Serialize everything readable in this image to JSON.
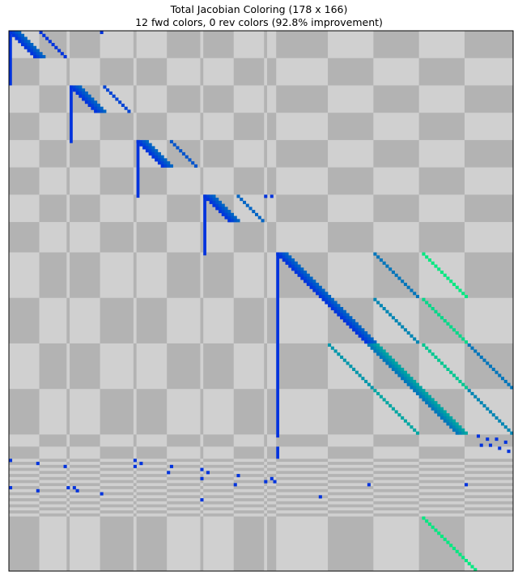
{
  "title_line1": "Total Jacobian Coloring (178 x 166)",
  "title_line2": "12 fwd colors, 0 rev colors (92.8% improvement)",
  "chart_data": {
    "type": "heatmap",
    "title": "Total Jacobian Coloring (178 x 166)\n12 fwd colors, 0 rev colors (92.8% improvement)",
    "n_rows": 178,
    "n_cols": 166,
    "xlim": [
      0,
      166
    ],
    "ylim": [
      178,
      0
    ],
    "grid": false,
    "legend": "none",
    "colors": {
      "block_light": "#d0d0d0",
      "block_dark": "#b3b3b3",
      "fwd_color_1": "#0033dd",
      "fwd_color_last": "#00e880"
    },
    "row_block_bounds": [
      0,
      9,
      18,
      27,
      36,
      45,
      54,
      63,
      73,
      88,
      103,
      118,
      133,
      137,
      141,
      142,
      143,
      144,
      145,
      146,
      147,
      148,
      149,
      150,
      151,
      152,
      153,
      154,
      155,
      156,
      157,
      158,
      159,
      160,
      178
    ],
    "col_block_bounds": [
      0,
      10,
      19,
      20,
      30,
      41,
      42,
      52,
      63,
      64,
      74,
      84,
      85,
      88,
      105,
      120,
      135,
      150,
      166
    ],
    "diagonal_runs": [
      {
        "row0": 0,
        "col0": 0,
        "len": 9,
        "width": 4,
        "colors": [
          1,
          2,
          3,
          4
        ]
      },
      {
        "row0": 18,
        "col0": 20,
        "len": 9,
        "width": 4,
        "colors": [
          1,
          2,
          3,
          4
        ]
      },
      {
        "row0": 36,
        "col0": 42,
        "len": 9,
        "width": 4,
        "colors": [
          1,
          2,
          3,
          4
        ]
      },
      {
        "row0": 54,
        "col0": 64,
        "len": 9,
        "width": 4,
        "colors": [
          1,
          2,
          3,
          4
        ]
      },
      {
        "row0": 73,
        "col0": 88,
        "len": 15,
        "width": 4,
        "colors": [
          1,
          2,
          3,
          4
        ]
      },
      {
        "row0": 88,
        "col0": 103,
        "len": 15,
        "width": 4,
        "colors": [
          1,
          2,
          3,
          4
        ]
      },
      {
        "row0": 103,
        "col0": 118,
        "len": 15,
        "width": 4,
        "colors": [
          5,
          6,
          7,
          8
        ]
      },
      {
        "row0": 118,
        "col0": 133,
        "len": 15,
        "width": 4,
        "colors": [
          5,
          6,
          7,
          8
        ]
      }
    ],
    "thin_diagonals": [
      {
        "row0": 0,
        "col0": 10,
        "len": 9,
        "color": 1
      },
      {
        "row0": 0,
        "col0": 30,
        "len": 1,
        "color": 1
      },
      {
        "row0": 18,
        "col0": 31,
        "len": 9,
        "color": 2
      },
      {
        "row0": 36,
        "col0": 53,
        "len": 9,
        "color": 3
      },
      {
        "row0": 54,
        "col0": 75,
        "len": 9,
        "color": 4
      },
      {
        "row0": 73,
        "col0": 120,
        "len": 15,
        "color": 5
      },
      {
        "row0": 73,
        "col0": 136,
        "len": 15,
        "color": 12
      },
      {
        "row0": 88,
        "col0": 120,
        "len": 15,
        "color": 6
      },
      {
        "row0": 88,
        "col0": 136,
        "len": 15,
        "color": 11
      },
      {
        "row0": 103,
        "col0": 105,
        "len": 15,
        "color": 7
      },
      {
        "row0": 103,
        "col0": 136,
        "len": 15,
        "color": 10
      },
      {
        "row0": 103,
        "col0": 151,
        "len": 15,
        "color": 5
      },
      {
        "row0": 118,
        "col0": 120,
        "len": 15,
        "color": 8
      },
      {
        "row0": 118,
        "col0": 151,
        "len": 15,
        "color": 6
      },
      {
        "row0": 160,
        "col0": 136,
        "len": 18,
        "color": 12
      }
    ],
    "vertical_bars": [
      {
        "col": 0,
        "row0": 0,
        "row1": 18
      },
      {
        "col": 20,
        "row0": 18,
        "row1": 37
      },
      {
        "col": 42,
        "row0": 36,
        "row1": 55
      },
      {
        "col": 64,
        "row0": 54,
        "row1": 74
      },
      {
        "col": 88,
        "row0": 73,
        "row1": 134
      },
      {
        "col": 88,
        "row0": 137,
        "row1": 141
      }
    ],
    "scatter_points": [
      {
        "row": 54,
        "col": 84
      },
      {
        "row": 54,
        "col": 86
      },
      {
        "row": 133,
        "col": 154
      },
      {
        "row": 134,
        "col": 157
      },
      {
        "row": 134,
        "col": 160
      },
      {
        "row": 135,
        "col": 163
      },
      {
        "row": 136,
        "col": 155
      },
      {
        "row": 136,
        "col": 158
      },
      {
        "row": 137,
        "col": 161
      },
      {
        "row": 138,
        "col": 164
      },
      {
        "row": 141,
        "col": 0
      },
      {
        "row": 142,
        "col": 9
      },
      {
        "row": 143,
        "col": 18
      },
      {
        "row": 141,
        "col": 41
      },
      {
        "row": 142,
        "col": 43
      },
      {
        "row": 143,
        "col": 53
      },
      {
        "row": 144,
        "col": 63
      },
      {
        "row": 145,
        "col": 65
      },
      {
        "row": 143,
        "col": 41
      },
      {
        "row": 145,
        "col": 52
      },
      {
        "row": 146,
        "col": 75
      },
      {
        "row": 147,
        "col": 63
      },
      {
        "row": 148,
        "col": 84
      },
      {
        "row": 147,
        "col": 86
      },
      {
        "row": 148,
        "col": 87
      },
      {
        "row": 149,
        "col": 74
      },
      {
        "row": 150,
        "col": 0
      },
      {
        "row": 151,
        "col": 9
      },
      {
        "row": 150,
        "col": 19
      },
      {
        "row": 150,
        "col": 21
      },
      {
        "row": 152,
        "col": 30
      },
      {
        "row": 151,
        "col": 22
      },
      {
        "row": 149,
        "col": 118
      },
      {
        "row": 149,
        "col": 150
      },
      {
        "row": 153,
        "col": 102
      },
      {
        "row": 154,
        "col": 63
      }
    ]
  }
}
